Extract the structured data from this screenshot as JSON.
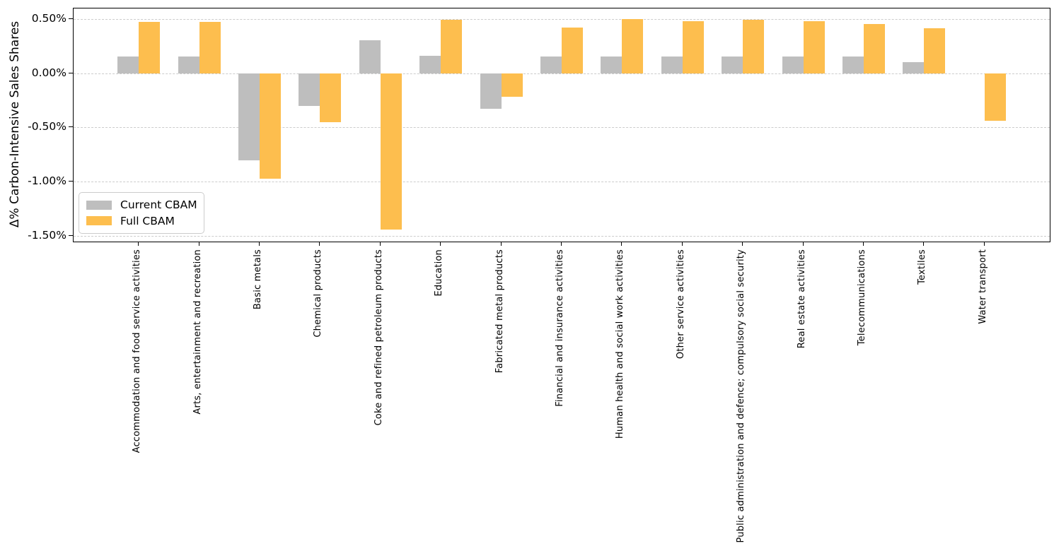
{
  "figure": {
    "ylabel": "Δ% Carbon-Intensive Sales Shares",
    "yticks": [
      {
        "label": "0.50%",
        "value": 0.5
      },
      {
        "label": "0.00%",
        "value": 0.0
      },
      {
        "label": "-0.50%",
        "value": -0.5
      },
      {
        "label": "-1.00%",
        "value": -1.0
      },
      {
        "label": "-1.50%",
        "value": -1.5
      }
    ],
    "legend": [
      {
        "label": "Current CBAM",
        "color": "#bebebe"
      },
      {
        "label": "Full CBAM",
        "color": "#fdbe4e"
      }
    ],
    "colors": {
      "current_cbam": "#bebebe",
      "full_cbam": "#fdbe4e",
      "gridline": "#cccccc",
      "spine": "#000000"
    }
  },
  "chart_data": {
    "type": "bar",
    "title": "",
    "xlabel": "",
    "ylabel": "Δ% Carbon-Intensive Sales Shares",
    "ylim": [
      -1.55,
      0.595
    ],
    "ytick_values": [
      0.5,
      0.0,
      -0.5,
      -1.0,
      -1.5
    ],
    "grid": "horizontal-dashed",
    "legend_position": "lower left",
    "categories": [
      "Accommodation and food service activities",
      "Arts, entertainment and recreation",
      "Basic metals",
      "Chemical products",
      "Coke and refined petroleum products",
      "Education",
      "Fabricated metal products",
      "Financial and insurance activities",
      "Human health and social work activities",
      "Other service activities",
      "Public administration and defence; compulsory social security",
      "Real estate activities",
      "Telecommunications",
      "Textiles",
      "Water transport"
    ],
    "series": [
      {
        "name": "Current CBAM",
        "color": "#bebebe",
        "values": [
          0.15,
          0.15,
          -0.8,
          -0.3,
          0.3,
          0.16,
          -0.33,
          0.15,
          0.15,
          0.15,
          0.15,
          0.15,
          0.15,
          0.1,
          0.0
        ]
      },
      {
        "name": "Full CBAM",
        "color": "#fdbe4e",
        "values": [
          0.47,
          0.47,
          -0.97,
          -0.45,
          -1.44,
          0.49,
          -0.22,
          0.42,
          0.5,
          0.48,
          0.49,
          0.48,
          0.45,
          0.41,
          -0.44
        ]
      }
    ],
    "units": "percent"
  }
}
